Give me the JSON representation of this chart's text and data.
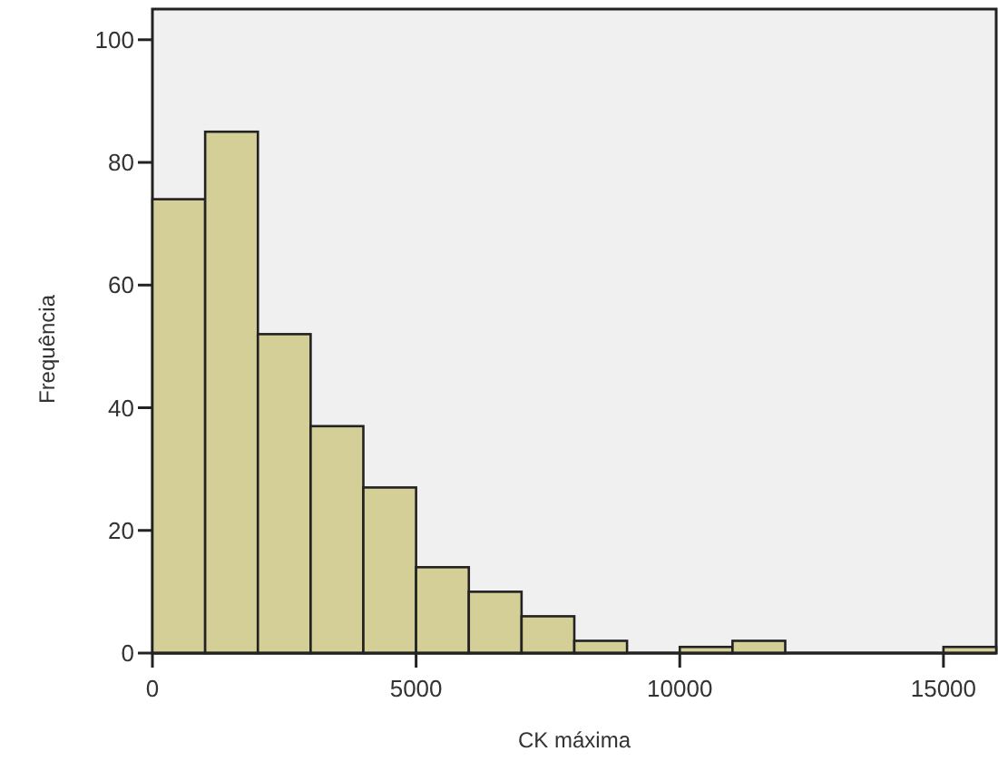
{
  "chart_data": {
    "type": "histogram",
    "xlabel": "CK máxima",
    "ylabel": "Frequência",
    "color": "#d4cf97",
    "bins": [
      0,
      1000,
      2000,
      3000,
      4000,
      5000,
      6000,
      7000,
      8000,
      9000,
      10000,
      11000,
      12000,
      13000,
      14000,
      15000,
      16000
    ],
    "values": [
      74,
      85,
      52,
      37,
      27,
      14,
      10,
      6,
      2,
      0,
      1,
      2,
      0,
      0,
      0,
      1
    ],
    "xlim": [
      0,
      16000
    ],
    "xticks": [
      0,
      5000,
      10000,
      15000
    ],
    "ylim": [
      0,
      105
    ],
    "yticks": [
      0,
      20,
      40,
      60,
      80,
      100
    ],
    "grid": false
  }
}
